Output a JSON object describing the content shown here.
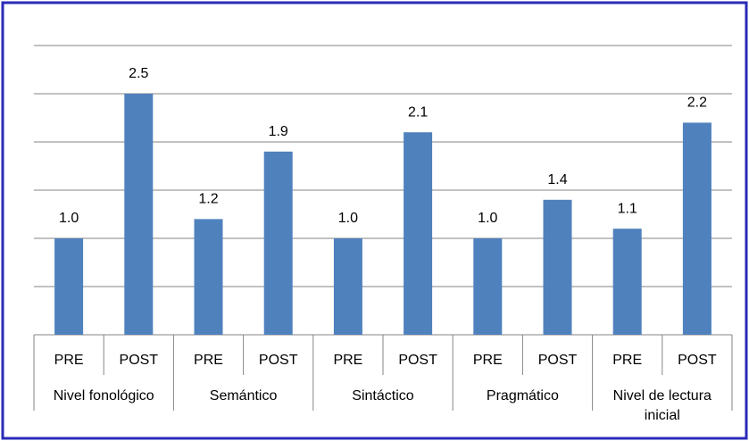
{
  "chart_data": {
    "type": "bar",
    "groups": [
      "Nivel fonológico",
      "Semántico",
      "Sintáctico",
      "Pragmático",
      "Nivel de lectura inicial"
    ],
    "categories": [
      "PRE",
      "POST",
      "PRE",
      "POST",
      "PRE",
      "POST",
      "PRE",
      "POST",
      "PRE",
      "POST"
    ],
    "values": [
      1.0,
      2.5,
      1.2,
      1.9,
      1.0,
      2.1,
      1.0,
      1.4,
      1.1,
      2.2
    ],
    "value_labels": [
      "1.0",
      "2.5",
      "1.2",
      "1.9",
      "1.0",
      "2.1",
      "1.0",
      "1.4",
      "1.1",
      "2.2"
    ],
    "color": "#4f81bd",
    "ylim": [
      0,
      3
    ],
    "yticks": [
      0,
      0.5,
      1,
      1.5,
      2,
      2.5,
      3
    ],
    "grid": true
  }
}
